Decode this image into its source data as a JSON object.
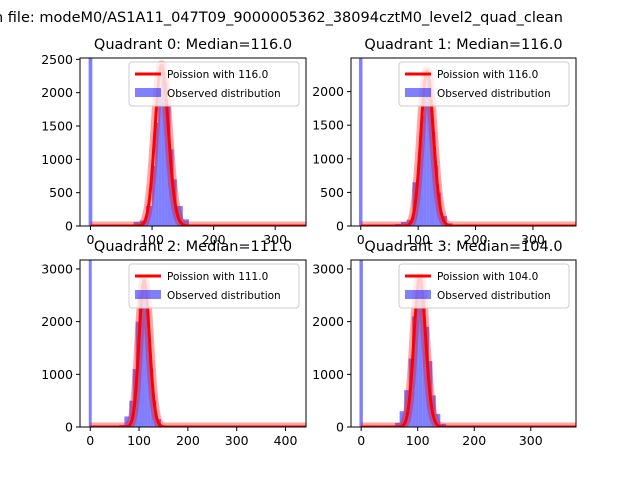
{
  "figure": {
    "suptitle": "n file: modeM0/AS1A11_047T09_9000005362_38094cztM0_level2_quad_clean"
  },
  "chart_data": [
    {
      "type": "bar",
      "title": "Quadrant 0: Median=116.0",
      "xlim": [
        -17,
        350
      ],
      "ylim": [
        0,
        2520
      ],
      "xticks": [
        0,
        100,
        200,
        300
      ],
      "yticks": [
        0,
        500,
        1000,
        1500,
        2000,
        2500
      ],
      "legend_position": "upper right",
      "median": 116,
      "series": [
        {
          "name": "Poission with 116.0",
          "kind": "line",
          "color": "#ff0000"
        },
        {
          "name": "Observed distribution",
          "kind": "histogram",
          "color": "#0000ff",
          "bins": [
            {
              "x0": -3,
              "x1": 3,
              "count": 2520
            },
            {
              "x0": 60,
              "x1": 70,
              "count": 20
            },
            {
              "x0": 70,
              "x1": 80,
              "count": 60
            },
            {
              "x0": 80,
              "x1": 90,
              "count": 80
            },
            {
              "x0": 90,
              "x1": 100,
              "count": 300
            },
            {
              "x0": 100,
              "x1": 105,
              "count": 900
            },
            {
              "x0": 105,
              "x1": 110,
              "count": 1550
            },
            {
              "x0": 110,
              "x1": 115,
              "count": 2050
            },
            {
              "x0": 115,
              "x1": 120,
              "count": 2300
            },
            {
              "x0": 120,
              "x1": 125,
              "count": 2150
            },
            {
              "x0": 125,
              "x1": 130,
              "count": 1800
            },
            {
              "x0": 130,
              "x1": 135,
              "count": 1150
            },
            {
              "x0": 135,
              "x1": 140,
              "count": 700
            },
            {
              "x0": 140,
              "x1": 150,
              "count": 300
            },
            {
              "x0": 150,
              "x1": 160,
              "count": 100
            }
          ]
        }
      ]
    },
    {
      "type": "bar",
      "title": "Quadrant 1: Median=116.0",
      "xlim": [
        -17,
        375
      ],
      "ylim": [
        0,
        2500
      ],
      "xticks": [
        0,
        100,
        200,
        300
      ],
      "yticks": [
        0,
        500,
        1000,
        1500,
        2000
      ],
      "legend_position": "upper right",
      "median": 116,
      "series": [
        {
          "name": "Poission with 116.0",
          "kind": "line",
          "color": "#ff0000"
        },
        {
          "name": "Observed distribution",
          "kind": "histogram",
          "color": "#0000ff",
          "bins": [
            {
              "x0": -3,
              "x1": 3,
              "count": 2500
            },
            {
              "x0": 60,
              "x1": 70,
              "count": 30
            },
            {
              "x0": 70,
              "x1": 80,
              "count": 60
            },
            {
              "x0": 80,
              "x1": 90,
              "count": 90
            },
            {
              "x0": 90,
              "x1": 100,
              "count": 650
            },
            {
              "x0": 100,
              "x1": 105,
              "count": 1050
            },
            {
              "x0": 105,
              "x1": 110,
              "count": 1650
            },
            {
              "x0": 110,
              "x1": 115,
              "count": 2050
            },
            {
              "x0": 115,
              "x1": 120,
              "count": 2200
            },
            {
              "x0": 120,
              "x1": 125,
              "count": 2050
            },
            {
              "x0": 125,
              "x1": 130,
              "count": 1400
            },
            {
              "x0": 130,
              "x1": 135,
              "count": 900
            },
            {
              "x0": 135,
              "x1": 140,
              "count": 500
            },
            {
              "x0": 140,
              "x1": 150,
              "count": 150
            },
            {
              "x0": 150,
              "x1": 160,
              "count": 40
            }
          ]
        }
      ]
    },
    {
      "type": "bar",
      "title": "Quadrant 2: Median=111.0",
      "xlim": [
        -21,
        442
      ],
      "ylim": [
        0,
        3170
      ],
      "xticks": [
        0,
        100,
        200,
        300,
        400
      ],
      "yticks": [
        0,
        1000,
        2000,
        3000
      ],
      "legend_position": "upper right",
      "median": 111,
      "series": [
        {
          "name": "Poission with 111.0",
          "kind": "line",
          "color": "#ff0000"
        },
        {
          "name": "Observed distribution",
          "kind": "histogram",
          "color": "#0000ff",
          "bins": [
            {
              "x0": -3,
              "x1": 3,
              "count": 3170
            },
            {
              "x0": 60,
              "x1": 70,
              "count": 40
            },
            {
              "x0": 70,
              "x1": 80,
              "count": 200
            },
            {
              "x0": 80,
              "x1": 87,
              "count": 500
            },
            {
              "x0": 87,
              "x1": 93,
              "count": 1100
            },
            {
              "x0": 93,
              "x1": 99,
              "count": 2000
            },
            {
              "x0": 99,
              "x1": 105,
              "count": 2500
            },
            {
              "x0": 105,
              "x1": 111,
              "count": 2650
            },
            {
              "x0": 111,
              "x1": 117,
              "count": 2500
            },
            {
              "x0": 117,
              "x1": 123,
              "count": 1800
            },
            {
              "x0": 123,
              "x1": 129,
              "count": 1100
            },
            {
              "x0": 129,
              "x1": 135,
              "count": 500
            },
            {
              "x0": 135,
              "x1": 145,
              "count": 150
            },
            {
              "x0": 145,
              "x1": 155,
              "count": 30
            }
          ]
        }
      ]
    },
    {
      "type": "bar",
      "title": "Quadrant 3: Median=104.0",
      "xlim": [
        -18,
        380
      ],
      "ylim": [
        0,
        3170
      ],
      "xticks": [
        0,
        100,
        200,
        300
      ],
      "yticks": [
        0,
        1000,
        2000,
        3000
      ],
      "legend_position": "upper right",
      "median": 104,
      "series": [
        {
          "name": "Poission with 104.0",
          "kind": "line",
          "color": "#ff0000"
        },
        {
          "name": "Observed distribution",
          "kind": "histogram",
          "color": "#0000ff",
          "bins": [
            {
              "x0": -3,
              "x1": 3,
              "count": 3170
            },
            {
              "x0": 60,
              "x1": 68,
              "count": 80
            },
            {
              "x0": 68,
              "x1": 76,
              "count": 300
            },
            {
              "x0": 76,
              "x1": 84,
              "count": 700
            },
            {
              "x0": 84,
              "x1": 90,
              "count": 1300
            },
            {
              "x0": 90,
              "x1": 96,
              "count": 2100
            },
            {
              "x0": 96,
              "x1": 102,
              "count": 2550
            },
            {
              "x0": 102,
              "x1": 108,
              "count": 2700
            },
            {
              "x0": 108,
              "x1": 114,
              "count": 2450
            },
            {
              "x0": 114,
              "x1": 120,
              "count": 1900
            },
            {
              "x0": 120,
              "x1": 126,
              "count": 1250
            },
            {
              "x0": 126,
              "x1": 132,
              "count": 600
            },
            {
              "x0": 132,
              "x1": 140,
              "count": 250
            },
            {
              "x0": 140,
              "x1": 150,
              "count": 60
            }
          ]
        }
      ]
    }
  ]
}
